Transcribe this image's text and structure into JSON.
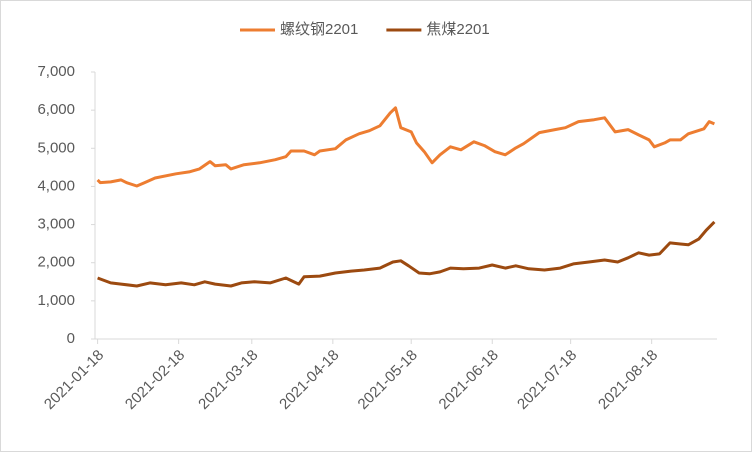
{
  "chart_data": {
    "type": "line",
    "xlim": [
      "2021-01-17",
      "2021-09-12"
    ],
    "xticks": [
      "2021-01-18",
      "2021-02-18",
      "2021-03-18",
      "2021-04-18",
      "2021-05-18",
      "2021-06-18",
      "2021-07-18",
      "2021-08-18"
    ],
    "ylim": [
      0,
      7000
    ],
    "yticks": [
      0,
      {
        "value": 1000,
        "label": "1,000"
      },
      {
        "value": 2000,
        "label": "2,000"
      },
      {
        "value": 3000,
        "label": "3,000"
      },
      {
        "value": 4000,
        "label": "4,000"
      },
      {
        "value": 5000,
        "label": "5,000"
      },
      {
        "value": 6000,
        "label": "6,000"
      },
      {
        "value": 7000,
        "label": "7,000"
      }
    ],
    "grid": false,
    "legend": "top",
    "series": [
      {
        "name": "螺纹钢2201",
        "color": "#ed7d31",
        "x": [
          "2021-01-18",
          "2021-01-19",
          "2021-01-23",
          "2021-01-27",
          "2021-01-29",
          "2021-02-02",
          "2021-02-05",
          "2021-02-09",
          "2021-02-17",
          "2021-02-22",
          "2021-02-26",
          "2021-03-02",
          "2021-03-04",
          "2021-03-08",
          "2021-03-10",
          "2021-03-15",
          "2021-03-21",
          "2021-03-27",
          "2021-03-31",
          "2021-04-02",
          "2021-04-07",
          "2021-04-11",
          "2021-04-13",
          "2021-04-19",
          "2021-04-23",
          "2021-04-28",
          "2021-05-02",
          "2021-05-06",
          "2021-05-10",
          "2021-05-12",
          "2021-05-14",
          "2021-05-18",
          "2021-05-20",
          "2021-05-23",
          "2021-05-26",
          "2021-05-29",
          "2021-06-02",
          "2021-06-06",
          "2021-06-11",
          "2021-06-15",
          "2021-06-19",
          "2021-06-23",
          "2021-06-27",
          "2021-06-30",
          "2021-07-06",
          "2021-07-12",
          "2021-07-16",
          "2021-07-21",
          "2021-07-27",
          "2021-07-31",
          "2021-08-04",
          "2021-08-09",
          "2021-08-13",
          "2021-08-17",
          "2021-08-19",
          "2021-08-23",
          "2021-08-25",
          "2021-08-29",
          "2021-09-01",
          "2021-09-07",
          "2021-09-09",
          "2021-09-11"
        ],
        "values": [
          4170,
          4100,
          4120,
          4170,
          4100,
          4010,
          4100,
          4220,
          4330,
          4380,
          4460,
          4650,
          4540,
          4570,
          4460,
          4570,
          4620,
          4700,
          4780,
          4930,
          4930,
          4830,
          4930,
          4990,
          5220,
          5380,
          5460,
          5590,
          5930,
          6060,
          5540,
          5430,
          5140,
          4910,
          4620,
          4830,
          5040,
          4960,
          5170,
          5070,
          4910,
          4830,
          5010,
          5120,
          5410,
          5490,
          5540,
          5700,
          5750,
          5800,
          5430,
          5490,
          5350,
          5220,
          5040,
          5140,
          5220,
          5220,
          5380,
          5510,
          5700,
          5640
        ]
      },
      {
        "name": "焦煤2201",
        "color": "#9c4a10",
        "x": [
          "2021-01-18",
          "2021-01-23",
          "2021-01-27",
          "2021-02-02",
          "2021-02-07",
          "2021-02-13",
          "2021-02-19",
          "2021-02-24",
          "2021-02-28",
          "2021-03-04",
          "2021-03-10",
          "2021-03-14",
          "2021-03-19",
          "2021-03-25",
          "2021-03-31",
          "2021-04-05",
          "2021-04-07",
          "2021-04-13",
          "2021-04-19",
          "2021-04-25",
          "2021-04-30",
          "2021-05-06",
          "2021-05-11",
          "2021-05-14",
          "2021-05-17",
          "2021-05-21",
          "2021-05-25",
          "2021-05-29",
          "2021-06-02",
          "2021-06-07",
          "2021-06-13",
          "2021-06-18",
          "2021-06-23",
          "2021-06-27",
          "2021-07-02",
          "2021-07-08",
          "2021-07-14",
          "2021-07-19",
          "2021-07-25",
          "2021-07-31",
          "2021-08-05",
          "2021-08-09",
          "2021-08-13",
          "2021-08-17",
          "2021-08-21",
          "2021-08-25",
          "2021-08-29",
          "2021-09-01",
          "2021-09-05",
          "2021-09-08",
          "2021-09-11"
        ],
        "values": [
          1600,
          1470,
          1440,
          1390,
          1470,
          1420,
          1470,
          1420,
          1500,
          1440,
          1390,
          1470,
          1500,
          1470,
          1600,
          1440,
          1630,
          1650,
          1730,
          1780,
          1810,
          1860,
          2020,
          2050,
          1920,
          1730,
          1710,
          1760,
          1860,
          1840,
          1860,
          1940,
          1860,
          1920,
          1840,
          1810,
          1860,
          1970,
          2020,
          2070,
          2020,
          2130,
          2260,
          2200,
          2230,
          2520,
          2490,
          2470,
          2620,
          2860,
          3070
        ]
      }
    ]
  }
}
